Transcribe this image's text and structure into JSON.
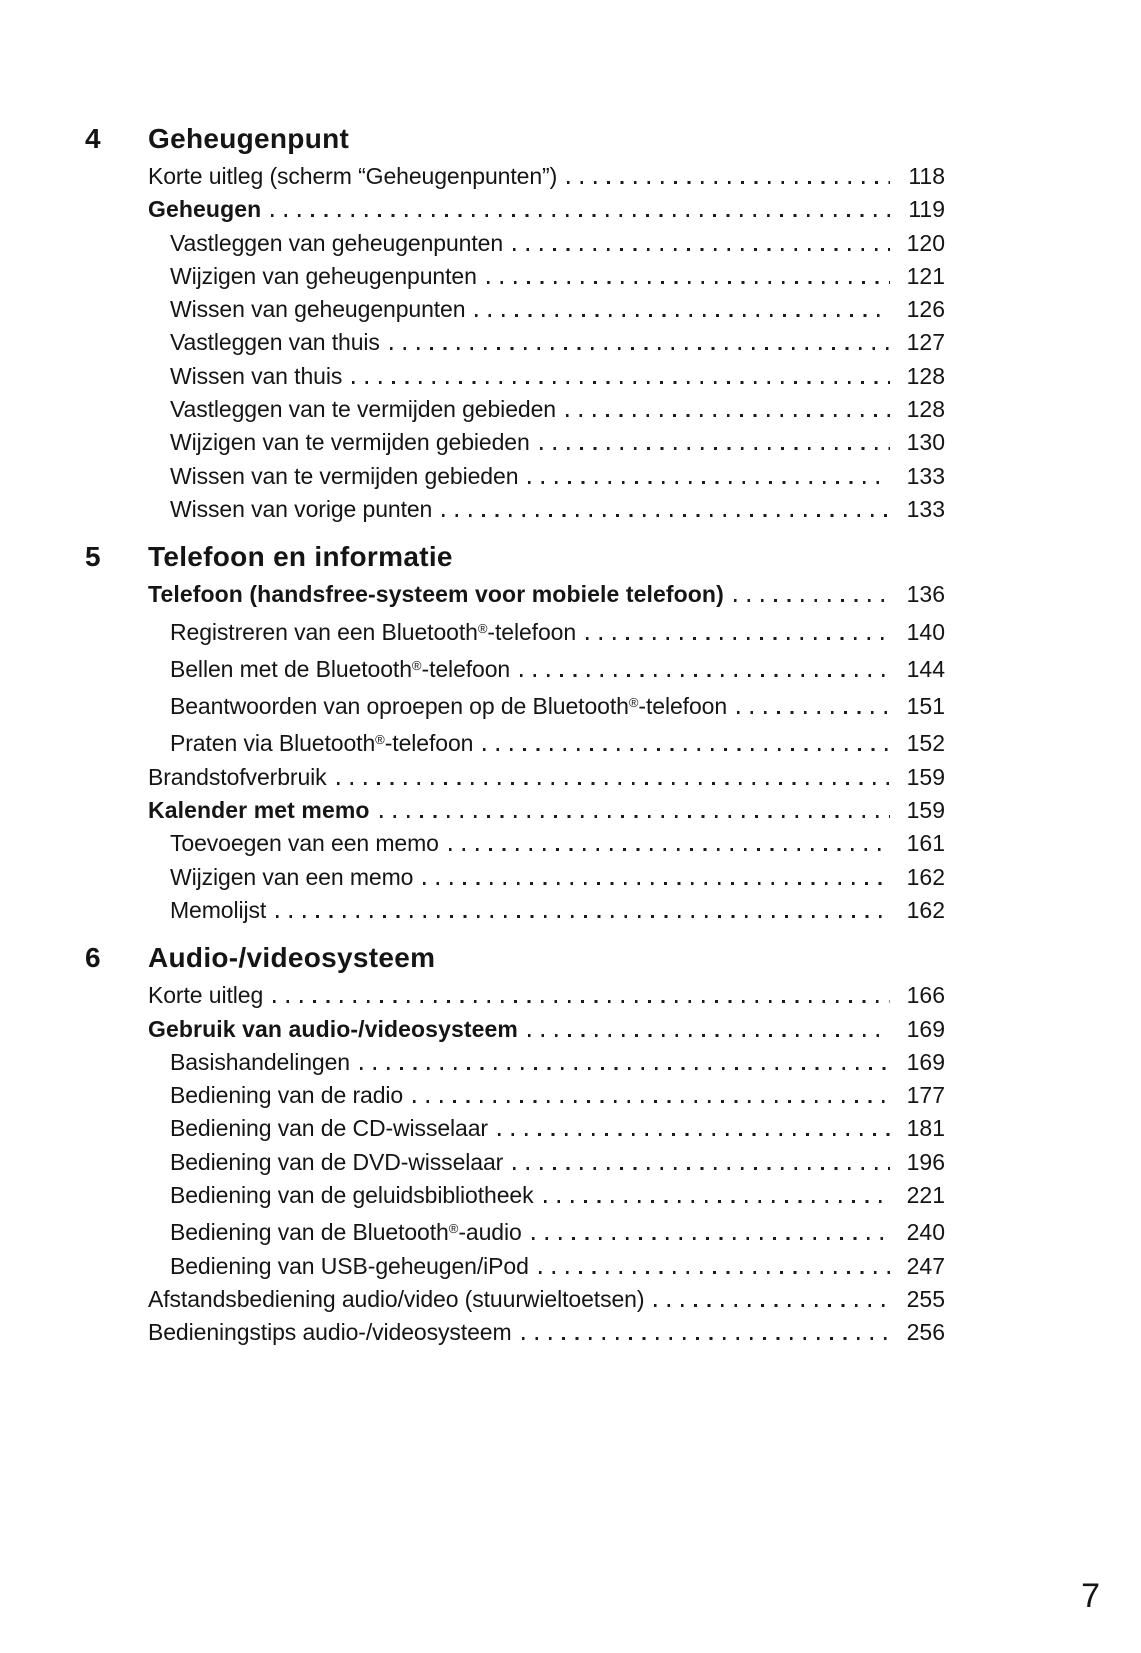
{
  "page": {
    "folio": "7"
  },
  "sections": [
    {
      "number": "4",
      "title": "Geheugenpunt",
      "entries": [
        {
          "label": "Korte uitleg (scherm “Geheugenpunten”)",
          "page": "118",
          "level": 1,
          "bold": false
        },
        {
          "label": "Geheugen",
          "page": "119",
          "level": 1,
          "bold": true
        },
        {
          "label": "Vastleggen van geheugenpunten",
          "page": "120",
          "level": 2,
          "bold": false
        },
        {
          "label": "Wijzigen van geheugenpunten",
          "page": "121",
          "level": 2,
          "bold": false
        },
        {
          "label": "Wissen van geheugenpunten",
          "page": "126",
          "level": 2,
          "bold": false
        },
        {
          "label": "Vastleggen van thuis",
          "page": "127",
          "level": 2,
          "bold": false
        },
        {
          "label": "Wissen van thuis",
          "page": "128",
          "level": 2,
          "bold": false
        },
        {
          "label": "Vastleggen van te vermijden gebieden",
          "page": "128",
          "level": 2,
          "bold": false
        },
        {
          "label": "Wijzigen van te vermijden gebieden",
          "page": "130",
          "level": 2,
          "bold": false
        },
        {
          "label": "Wissen van te vermijden gebieden",
          "page": "133",
          "level": 2,
          "bold": false
        },
        {
          "label": "Wissen van vorige punten",
          "page": "133",
          "level": 2,
          "bold": false
        }
      ]
    },
    {
      "number": "5",
      "title": "Telefoon en informatie",
      "entries": [
        {
          "label": "Telefoon (handsfree-systeem voor mobiele telefoon)",
          "page": "136",
          "level": 1,
          "bold": true
        },
        {
          "label": "Registreren van een Bluetooth®-telefoon",
          "page": "140",
          "level": 2,
          "bold": false
        },
        {
          "label": "Bellen met de Bluetooth®-telefoon",
          "page": "144",
          "level": 2,
          "bold": false
        },
        {
          "label": "Beantwoorden van oproepen op de Bluetooth®-telefoon",
          "page": "151",
          "level": 2,
          "bold": false
        },
        {
          "label": "Praten via Bluetooth®-telefoon",
          "page": "152",
          "level": 2,
          "bold": false
        },
        {
          "label": "Brandstofverbruik",
          "page": "159",
          "level": 1,
          "bold": false
        },
        {
          "label": "Kalender met memo",
          "page": "159",
          "level": 1,
          "bold": true
        },
        {
          "label": "Toevoegen van een memo",
          "page": "161",
          "level": 2,
          "bold": false
        },
        {
          "label": "Wijzigen van een memo",
          "page": "162",
          "level": 2,
          "bold": false
        },
        {
          "label": "Memolijst",
          "page": "162",
          "level": 2,
          "bold": false
        }
      ]
    },
    {
      "number": "6",
      "title": "Audio-/videosysteem",
      "entries": [
        {
          "label": "Korte uitleg",
          "page": "166",
          "level": 1,
          "bold": false
        },
        {
          "label": "Gebruik van audio-/videosysteem",
          "page": "169",
          "level": 1,
          "bold": true
        },
        {
          "label": "Basishandelingen",
          "page": "169",
          "level": 2,
          "bold": false
        },
        {
          "label": "Bediening van de radio",
          "page": "177",
          "level": 2,
          "bold": false
        },
        {
          "label": "Bediening van de CD-wisselaar",
          "page": "181",
          "level": 2,
          "bold": false
        },
        {
          "label": "Bediening van de DVD-wisselaar",
          "page": "196",
          "level": 2,
          "bold": false
        },
        {
          "label": "Bediening van de geluidsbibliotheek",
          "page": "221",
          "level": 2,
          "bold": false
        },
        {
          "label": "Bediening van de Bluetooth®-audio",
          "page": "240",
          "level": 2,
          "bold": false
        },
        {
          "label": "Bediening van USB-geheugen/iPod",
          "page": "247",
          "level": 2,
          "bold": false
        },
        {
          "label": "Afstandsbediening audio/video (stuurwieltoetsen)",
          "page": "255",
          "level": 1,
          "bold": false
        },
        {
          "label": "Bedieningstips audio-/videosysteem",
          "page": "256",
          "level": 1,
          "bold": false
        }
      ]
    }
  ]
}
